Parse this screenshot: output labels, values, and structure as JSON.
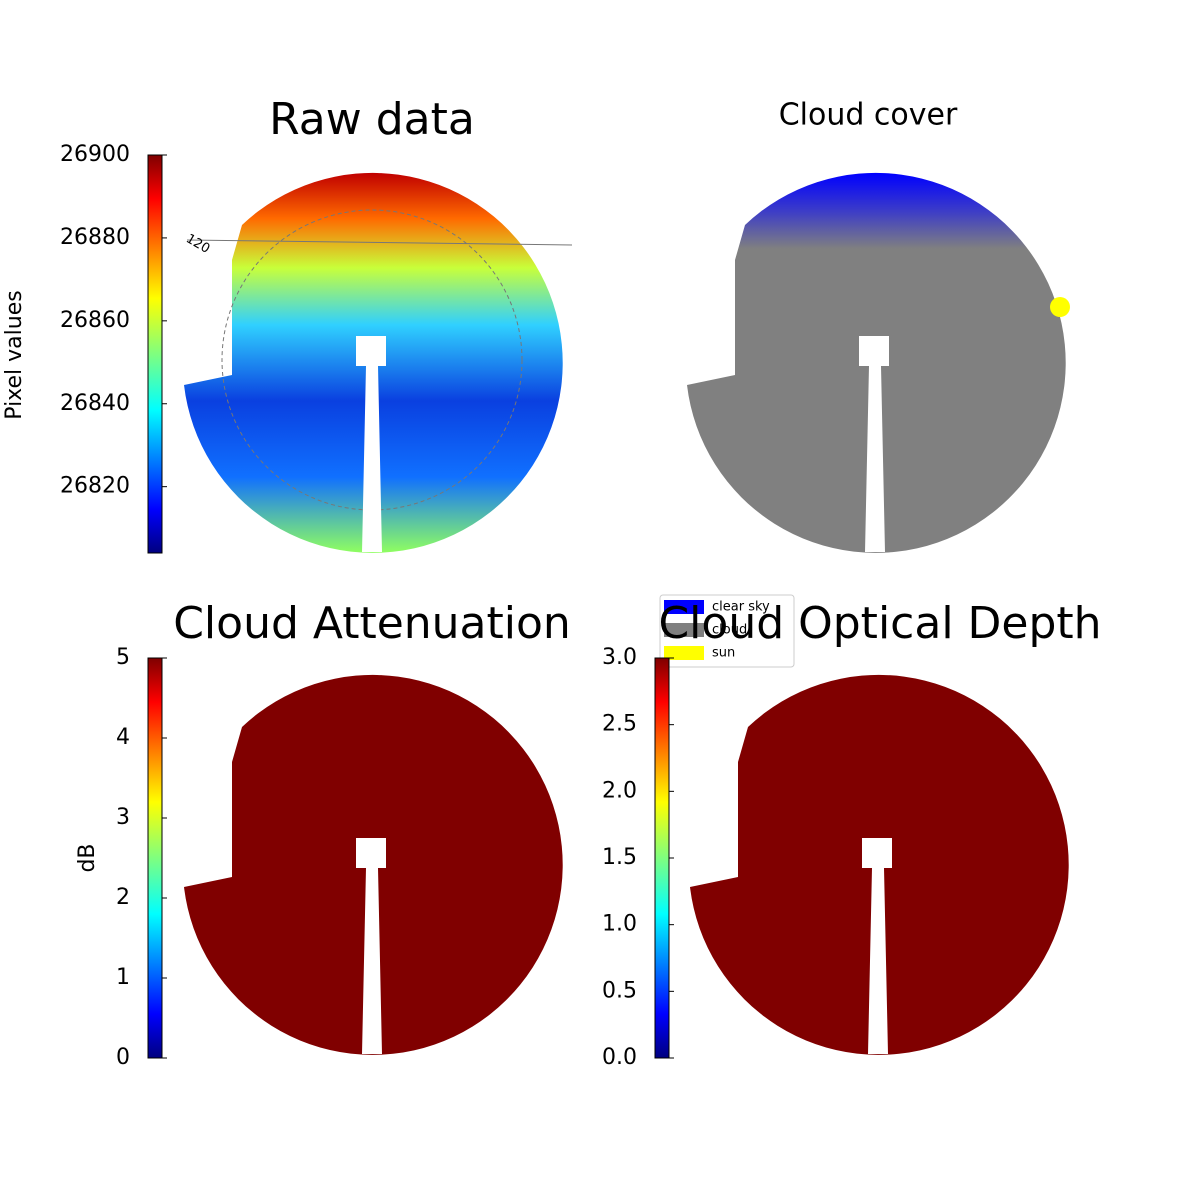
{
  "chart_data": [
    {
      "type": "image",
      "title": "Raw data",
      "annotations": [
        "120"
      ],
      "colorbar": {
        "label": "Pixel values",
        "colormap": "jet",
        "ylim": [
          26804,
          26900
        ],
        "yticks": [
          26820,
          26840,
          26860,
          26880,
          26900
        ]
      }
    },
    {
      "type": "image",
      "title": "Cloud cover",
      "legend": [
        {
          "name": "clear sky",
          "color": "#0000ff"
        },
        {
          "name": "cloud",
          "color": "#808080"
        },
        {
          "name": "sun",
          "color": "#ffff00"
        }
      ]
    },
    {
      "type": "image",
      "title": "Cloud Attenuation",
      "colorbar": {
        "label": "dB",
        "colormap": "jet",
        "ylim": [
          0,
          5
        ],
        "yticks": [
          0,
          1,
          2,
          3,
          4,
          5
        ]
      }
    },
    {
      "type": "image",
      "title": "Cloud Optical Depth",
      "colorbar": {
        "colormap": "jet",
        "ylim": [
          0,
          3
        ],
        "yticks": [
          {
            "value": 0,
            "label": "0.0"
          },
          0.5,
          {
            "value": 1,
            "label": "1.0"
          },
          1.5,
          {
            "value": 2,
            "label": "2.0"
          },
          2.5,
          {
            "value": 3,
            "label": "3.0"
          }
        ]
      }
    }
  ]
}
